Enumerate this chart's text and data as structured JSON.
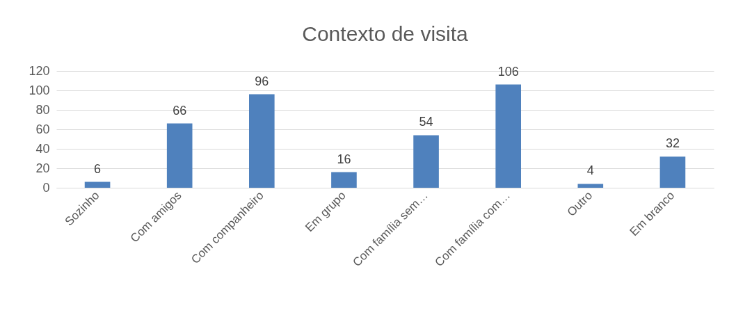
{
  "chart_data": {
    "type": "bar",
    "title": "Contexto de visita",
    "categories": [
      "Sozinho",
      "Com amigos",
      "Com companheiro",
      "Em grupo",
      "Com família sem…",
      "Com família com…",
      "Outro",
      "Em branco"
    ],
    "values": [
      6,
      66,
      96,
      16,
      54,
      106,
      4,
      32
    ],
    "color": "#4f81bd",
    "ylim": [
      0,
      120
    ],
    "yticks": [
      0,
      20,
      40,
      60,
      80,
      100,
      120
    ],
    "grid": "y",
    "data_labels": true
  }
}
